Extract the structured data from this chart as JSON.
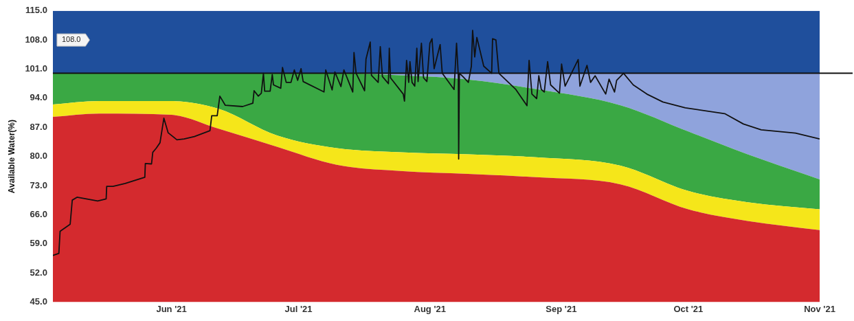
{
  "chart_data": {
    "type": "area",
    "ylabel": "Available Water(%)",
    "x": [
      "2021-05-04",
      "2021-05-15",
      "2021-06-01",
      "2021-06-12",
      "2021-06-26",
      "2021-07-10",
      "2021-07-25",
      "2021-08-10",
      "2021-08-26",
      "2021-09-15",
      "2021-10-01",
      "2021-10-15",
      "2021-11-01"
    ],
    "series": [
      {
        "color": "#d42a2e",
        "values": [
          89.5,
          90.3,
          90,
          86.7,
          82.3,
          78,
          76.5,
          75.8,
          75,
          73.3,
          67.3,
          64.5,
          62.3
        ]
      },
      {
        "color": "#f5e61a",
        "values": [
          92.5,
          93.3,
          93.3,
          91.5,
          85,
          82,
          81,
          80.5,
          79.8,
          77.8,
          71.7,
          69,
          67.3
        ]
      },
      {
        "color": "#3aa844",
        "values": [
          100,
          100,
          100,
          100,
          100,
          100,
          99.5,
          98.5,
          96.2,
          92.3,
          86,
          80.5,
          74.5
        ]
      },
      {
        "color": "#8fa3dc",
        "values": [
          100,
          100,
          100,
          100,
          100,
          100,
          100,
          100,
          100,
          100,
          100,
          100,
          100
        ]
      },
      {
        "color": "#1f4f9c",
        "values": [
          115,
          115,
          115,
          115,
          115,
          115,
          115,
          115,
          115,
          115,
          115,
          115,
          115
        ]
      },
      {
        "type": "line",
        "color": "#111111",
        "x": [
          "2021-05-04",
          "2021-05-05T10:00",
          "2021-05-05T17:00",
          "2021-05-08T02:00",
          "2021-05-08T14:00",
          "2021-05-09T17:00",
          "2021-05-14T14:00",
          "2021-05-16T14:00",
          "2021-05-16T17:00",
          "2021-05-18T05:00",
          "2021-05-21T02:00",
          "2021-05-25T17:00",
          "2021-05-25T20:00",
          "2021-05-27T07:00",
          "2021-05-27T14:00",
          "2021-05-28T10:00",
          "2021-05-29T07:00",
          "2021-05-30T05:00",
          "2021-05-31T05:00",
          "2021-06-02T07:00",
          "2021-06-04",
          "2021-06-06T10:00",
          "2021-06-10T02:00",
          "2021-06-10T12:00",
          "2021-06-11T19:00",
          "2021-06-12T10:00",
          "2021-06-13T17:00",
          "2021-06-17T19:00",
          "2021-06-20T05:00",
          "2021-06-20T12:00",
          "2021-06-21T12:00",
          "2021-06-22T05:00",
          "2021-06-22T17:00",
          "2021-06-23",
          "2021-06-24T07:00",
          "2021-06-24T19:00",
          "2021-06-25T02:00",
          "2021-06-26T19:00",
          "2021-06-27T05:00",
          "2021-06-28T02:00",
          "2021-06-29T05:00",
          "2021-06-30",
          "2021-06-30T19:00",
          "2021-07-01T14:00",
          "2021-07-02T02:00",
          "2021-07-07",
          "2021-07-07T10:00",
          "2021-07-08T22:00",
          "2021-07-09T14:00",
          "2021-07-11",
          "2021-07-11T17:00",
          "2021-07-13T19:00",
          "2021-07-14T02:00",
          "2021-07-14T14:00",
          "2021-07-16T14:00",
          "2021-07-16T22:00",
          "2021-07-17T22:00",
          "2021-07-18T05:00",
          "2021-07-19T19:00",
          "2021-07-20T07:00",
          "2021-07-20T19:00",
          "2021-07-22T05:00",
          "2021-07-22T10:00",
          "2021-07-22T17:00",
          "2021-07-25T17:00",
          "2021-07-26",
          "2021-07-26T12:00",
          "2021-07-27",
          "2021-07-27T07:00",
          "2021-07-27T19:00",
          "2021-07-28T10:00",
          "2021-07-28T22:00",
          "2021-07-29T05:00",
          "2021-07-30",
          "2021-07-30T12:00",
          "2021-07-31T07:00",
          "2021-08-01",
          "2021-08-01T12:00",
          "2021-08-02",
          "2021-08-03T10:00",
          "2021-08-03T22:00",
          "2021-08-06T17:00",
          "2021-08-07T07:00",
          "2021-08-07T17:00",
          "2021-08-07T19:00",
          "2021-08-07T23:00",
          "2021-08-08T19:00",
          "2021-08-10T02:00",
          "2021-08-10T19:00",
          "2021-08-11T02:00",
          "2021-08-11T14:00",
          "2021-08-12T02:00",
          "2021-08-13T17:00",
          "2021-08-15T14:00",
          "2021-08-15T19:00",
          "2021-08-16T14:00",
          "2021-08-17T07:00",
          "2021-08-21T07:00",
          "2021-08-23T22:00",
          "2021-08-24T10:00",
          "2021-08-25T02:00",
          "2021-08-26T05:00",
          "2021-08-26T17:00",
          "2021-08-27T07:00",
          "2021-08-28",
          "2021-08-28T19:00",
          "2021-08-29T12:00",
          "2021-08-31T14:00",
          "2021-09-01T02:00",
          "2021-09-01T22:00",
          "2021-09-05",
          "2021-09-05T10:00",
          "2021-09-07T02:00",
          "2021-09-07T22:00",
          "2021-09-09",
          "2021-09-11T12:00",
          "2021-09-12T07:00",
          "2021-09-13T14:00",
          "2021-09-14T02:00",
          "2021-09-15T17:00",
          "2021-09-18",
          "2021-09-21T05:00",
          "2021-09-25",
          "2021-09-30T07:00",
          "2021-10-09T14:00",
          "2021-10-14",
          "2021-10-18T05:00",
          "2021-10-26T07:00",
          "2021-11-01"
        ],
        "values": [
          56.2,
          56.7,
          62,
          63.7,
          69.5,
          70.2,
          69.3,
          69.8,
          72.8,
          72.8,
          73.5,
          75,
          78.3,
          78.2,
          81,
          82,
          83.3,
          89.2,
          85.7,
          84,
          84.2,
          84.8,
          86.2,
          89.8,
          89.8,
          94.5,
          92.3,
          92,
          92.8,
          95.8,
          94.5,
          95.2,
          100,
          95.7,
          95.7,
          99.7,
          97.2,
          96.4,
          101.4,
          97.8,
          97.8,
          100.8,
          98.3,
          101.1,
          98,
          95.5,
          100.8,
          96,
          100.3,
          96.8,
          100.8,
          95.5,
          105,
          100,
          95.8,
          103.4,
          107.5,
          99.5,
          97.8,
          106.4,
          99.2,
          97.5,
          106,
          98.9,
          95,
          93.3,
          103.1,
          97.8,
          102.8,
          97.8,
          96.9,
          106,
          98,
          107.2,
          98.9,
          98,
          107.2,
          108.3,
          101.1,
          106.9,
          100,
          96.1,
          107.2,
          99.4,
          79.4,
          100,
          99.2,
          97.8,
          101.7,
          110.3,
          103.9,
          108.6,
          101.7,
          100,
          108.3,
          108,
          100,
          96.1,
          92.2,
          103.1,
          95,
          93.9,
          99.4,
          96.1,
          95.5,
          102.8,
          97.2,
          95.2,
          102.2,
          96.9,
          103.3,
          96.9,
          101.9,
          97.8,
          99.4,
          95,
          98.6,
          95.5,
          98.3,
          100,
          97.2,
          95,
          93.1,
          91.7,
          90.3,
          87.8,
          86.4,
          85.6,
          84.2
        ]
      }
    ],
    "xlim": [
      "2021-05-04",
      "2021-11-01"
    ],
    "xticks": [
      {
        "value": "2021-06-01",
        "label": "Jun '21"
      },
      {
        "value": "2021-07-01",
        "label": "Jul '21"
      },
      {
        "value": "2021-08-01",
        "label": "Aug '21"
      },
      {
        "value": "2021-09-01",
        "label": "Sep '21"
      },
      {
        "value": "2021-10-01",
        "label": "Oct '21"
      },
      {
        "value": "2021-11-01",
        "label": "Nov '21"
      }
    ],
    "ylim": [
      45,
      115
    ],
    "yticks": [
      {
        "value": 45,
        "label": "45.0"
      },
      {
        "value": 52,
        "label": "52.0"
      },
      {
        "value": 59,
        "label": "59.0"
      },
      {
        "value": 66,
        "label": "66.0"
      },
      {
        "value": 73,
        "label": "73.0"
      },
      {
        "value": 80,
        "label": "80.0"
      },
      {
        "value": 87,
        "label": "87.0"
      },
      {
        "value": 94,
        "label": "94.0"
      },
      {
        "value": 101,
        "label": "101.0"
      },
      {
        "value": 108,
        "label": "108.0"
      },
      {
        "value": 115,
        "label": "115.0"
      }
    ],
    "ref_lines": [
      {
        "axis": "y",
        "value": 100,
        "color": "#111111",
        "line_style": "solid"
      }
    ],
    "annotations": [
      "108.0"
    ],
    "grid": false,
    "legend": false,
    "marker": "none",
    "line_style": "solid"
  }
}
